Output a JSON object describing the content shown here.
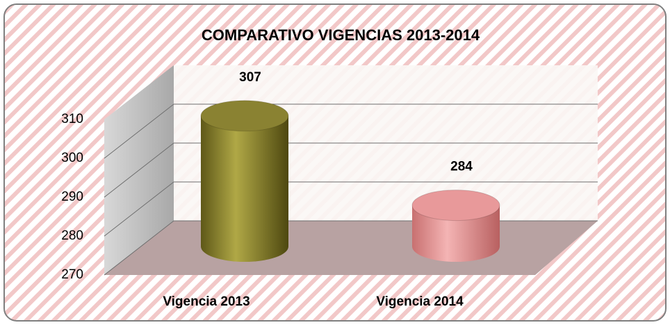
{
  "chart_data": {
    "type": "bar3d",
    "title": "COMPARATIVO VIGENCIAS  2013-2014",
    "categories": [
      "Vigencia 2013",
      "Vigencia 2014"
    ],
    "series": [
      {
        "name": null,
        "values": [
          307,
          284
        ],
        "colors": [
          "#8a8232",
          "#e8999a"
        ]
      }
    ],
    "ylim": [
      270,
      320
    ],
    "yticks": [
      270,
      280,
      290,
      300,
      310
    ],
    "grid": true
  }
}
